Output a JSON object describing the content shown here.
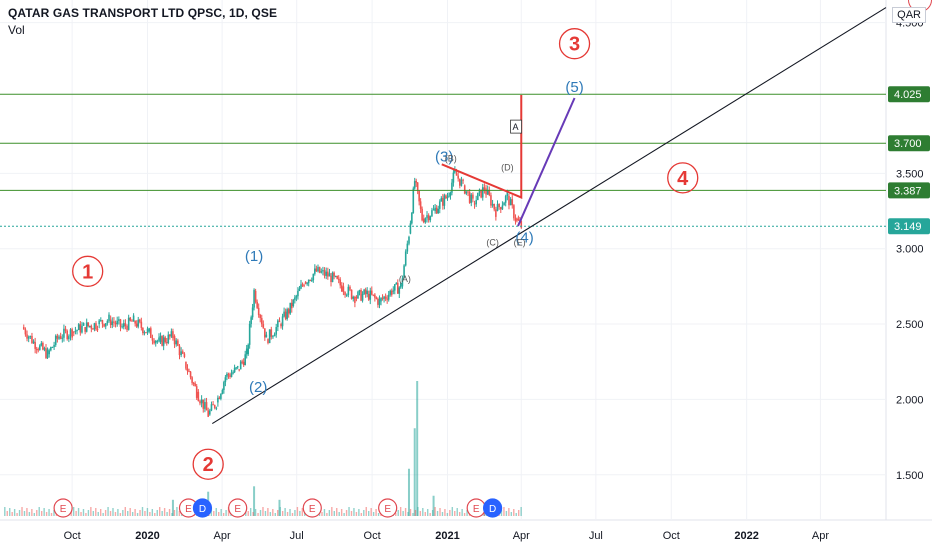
{
  "header": {
    "symbol_title": "QATAR GAS TRANSPORT LTD QPSC, 1D, QSE",
    "indicator": "Vol",
    "currency": "QAR"
  },
  "chart_data": {
    "type": "line",
    "title": "QATAR GAS TRANSPORT LTD QPSC, 1D, QSE",
    "x_axis": {
      "tick_labels": [
        "Oct",
        "2020",
        "Apr",
        "Jul",
        "Oct",
        "2021",
        "Apr",
        "Jul",
        "Oct",
        "2022",
        "Apr"
      ],
      "range": [
        "2019-08",
        "2022-06"
      ]
    },
    "y_axis": {
      "tick_labels": [
        "1.500",
        "2.000",
        "2.500",
        "3.000",
        "3.500",
        "4.500"
      ],
      "range": [
        1.2,
        4.65
      ],
      "side": "right"
    },
    "price_series": [
      {
        "x": "2019-08-01",
        "y": 2.48
      },
      {
        "x": "2019-08-15",
        "y": 2.38
      },
      {
        "x": "2019-09-01",
        "y": 2.3
      },
      {
        "x": "2019-09-15",
        "y": 2.42
      },
      {
        "x": "2019-10-01",
        "y": 2.45
      },
      {
        "x": "2019-10-15",
        "y": 2.48
      },
      {
        "x": "2019-11-01",
        "y": 2.5
      },
      {
        "x": "2019-11-15",
        "y": 2.53
      },
      {
        "x": "2019-12-01",
        "y": 2.48
      },
      {
        "x": "2019-12-15",
        "y": 2.52
      },
      {
        "x": "2020-01-01",
        "y": 2.45
      },
      {
        "x": "2020-01-15",
        "y": 2.38
      },
      {
        "x": "2020-02-01",
        "y": 2.42
      },
      {
        "x": "2020-02-15",
        "y": 2.25
      },
      {
        "x": "2020-03-01",
        "y": 2.05
      },
      {
        "x": "2020-03-15",
        "y": 1.9
      },
      {
        "x": "2020-03-25",
        "y": 1.98
      },
      {
        "x": "2020-04-05",
        "y": 2.15
      },
      {
        "x": "2020-04-20",
        "y": 2.2
      },
      {
        "x": "2020-05-01",
        "y": 2.3
      },
      {
        "x": "2020-05-10",
        "y": 2.72
      },
      {
        "x": "2020-05-25",
        "y": 2.4
      },
      {
        "x": "2020-06-10",
        "y": 2.5
      },
      {
        "x": "2020-06-25",
        "y": 2.62
      },
      {
        "x": "2020-07-10",
        "y": 2.78
      },
      {
        "x": "2020-07-25",
        "y": 2.85
      },
      {
        "x": "2020-08-10",
        "y": 2.82
      },
      {
        "x": "2020-08-25",
        "y": 2.75
      },
      {
        "x": "2020-09-10",
        "y": 2.68
      },
      {
        "x": "2020-09-25",
        "y": 2.7
      },
      {
        "x": "2020-10-10",
        "y": 2.65
      },
      {
        "x": "2020-10-25",
        "y": 2.72
      },
      {
        "x": "2020-11-05",
        "y": 2.75
      },
      {
        "x": "2020-11-15",
        "y": 3.1
      },
      {
        "x": "2020-11-22",
        "y": 3.45
      },
      {
        "x": "2020-12-01",
        "y": 3.2
      },
      {
        "x": "2020-12-15",
        "y": 3.25
      },
      {
        "x": "2021-01-01",
        "y": 3.35
      },
      {
        "x": "2021-01-10",
        "y": 3.5
      },
      {
        "x": "2021-01-20",
        "y": 3.42
      },
      {
        "x": "2021-02-01",
        "y": 3.3
      },
      {
        "x": "2021-02-15",
        "y": 3.4
      },
      {
        "x": "2021-03-01",
        "y": 3.25
      },
      {
        "x": "2021-03-15",
        "y": 3.35
      },
      {
        "x": "2021-03-25",
        "y": 3.2
      },
      {
        "x": "2021-04-01",
        "y": 3.149
      }
    ],
    "volume_series": [
      {
        "x": "2020-02-01",
        "v": 0.12
      },
      {
        "x": "2020-03-15",
        "v": 0.18
      },
      {
        "x": "2020-05-10",
        "v": 0.22
      },
      {
        "x": "2020-06-10",
        "v": 0.12
      },
      {
        "x": "2020-11-15",
        "v": 0.35
      },
      {
        "x": "2020-11-22",
        "v": 0.65
      },
      {
        "x": "2020-11-25",
        "v": 1.0
      },
      {
        "x": "2020-12-15",
        "v": 0.15
      },
      {
        "x": "2021-02-15",
        "v": 0.1
      }
    ],
    "horizontal_levels": [
      {
        "value": 4.025,
        "label": "4.025",
        "color": "#3d8f2a"
      },
      {
        "value": 3.7,
        "label": "3.700",
        "color": "#3d8f2a"
      },
      {
        "value": 3.387,
        "label": "3.387",
        "color": "#3d8f2a"
      },
      {
        "value": 3.149,
        "label": "3.149",
        "color": "#26a69a"
      }
    ],
    "trend_line": {
      "from": {
        "x": "2020-03-20",
        "y": 1.84
      },
      "to": {
        "x": "2022-06-20",
        "y": 4.6
      }
    },
    "red_wedge": {
      "points": [
        {
          "x": "2020-12-25",
          "y": 3.56
        },
        {
          "x": "2021-04-01",
          "y": 3.34
        },
        {
          "x": "2021-04-01",
          "y": 4.02
        }
      ]
    },
    "purple_projection": {
      "from": {
        "x": "2021-03-28",
        "y": 3.15
      },
      "to": {
        "x": "2021-06-05",
        "y": 4.0
      }
    },
    "wave_labels": {
      "red_circled": [
        {
          "label": "1",
          "x": "2019-10-20",
          "y": 2.85
        },
        {
          "label": "2",
          "x": "2020-03-15",
          "y": 1.57
        },
        {
          "label": "3",
          "x": "2021-06-05",
          "y": 4.36
        },
        {
          "label": "4",
          "x": "2021-10-15",
          "y": 3.47
        }
      ],
      "blue": [
        {
          "label": "(1)",
          "x": "2020-05-10",
          "y": 2.92
        },
        {
          "label": "(2)",
          "x": "2020-05-15",
          "y": 2.05
        },
        {
          "label": "(3)",
          "x": "2020-12-28",
          "y": 3.58
        },
        {
          "label": "(4)",
          "x": "2021-04-05",
          "y": 3.04
        },
        {
          "label": "(5)",
          "x": "2021-06-05",
          "y": 4.04
        }
      ],
      "gray": [
        {
          "label": "(A)",
          "x": "2020-11-10",
          "y": 2.78
        },
        {
          "label": "(B)",
          "x": "2021-01-05",
          "y": 3.58
        },
        {
          "label": "(C)",
          "x": "2021-02-25",
          "y": 3.02
        },
        {
          "label": "(D)",
          "x": "2021-03-15",
          "y": 3.52
        },
        {
          "label": "(E)",
          "x": "2021-03-30",
          "y": 3.02
        }
      ],
      "box": [
        {
          "label": "A",
          "x": "2021-03-25",
          "y": 3.8
        }
      ]
    },
    "event_markers": [
      {
        "label": "E",
        "x": "2019-09-20",
        "kind": "earnings"
      },
      {
        "label": "E",
        "x": "2020-02-20",
        "kind": "earnings"
      },
      {
        "label": "D",
        "x": "2020-03-08",
        "kind": "dividend"
      },
      {
        "label": "E",
        "x": "2020-04-20",
        "kind": "earnings"
      },
      {
        "label": "E",
        "x": "2020-07-20",
        "kind": "earnings"
      },
      {
        "label": "E",
        "x": "2020-10-20",
        "kind": "earnings"
      },
      {
        "label": "E",
        "x": "2021-02-05",
        "kind": "earnings"
      },
      {
        "label": "D",
        "x": "2021-02-25",
        "kind": "dividend"
      }
    ],
    "grid": true,
    "colors": {
      "bull": "#26a69a",
      "bear": "#ef5350",
      "level": "#3d8f2a",
      "trend": "#131722",
      "wedge": "#e53935",
      "projection": "#673ab7",
      "wave_red": "#e53935",
      "wave_blue": "#2f7ab8",
      "wave_gray": "#555555"
    }
  }
}
